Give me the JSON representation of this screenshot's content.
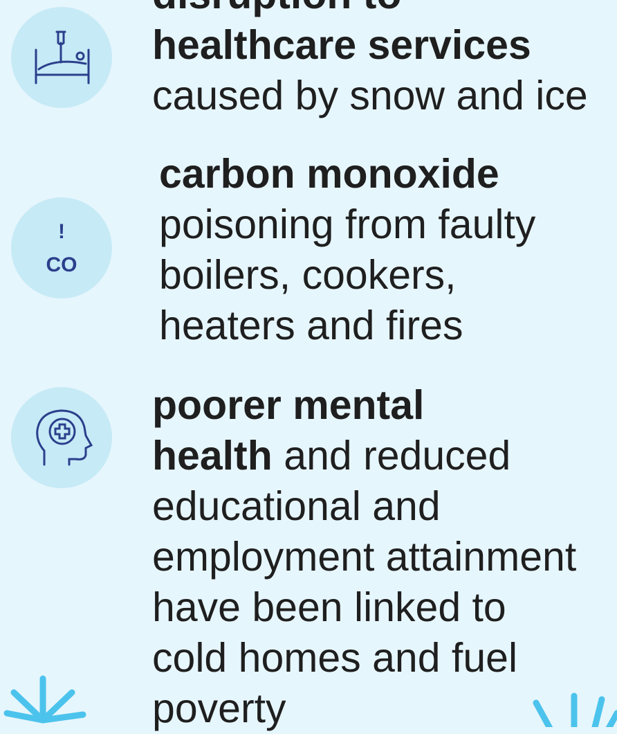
{
  "items": [
    {
      "icon": "bed",
      "lines": [
        {
          "bold": "disruption to"
        },
        {
          "bold": "healthcare services"
        },
        {
          "text": "caused by snow and ice"
        }
      ]
    },
    {
      "icon": "co",
      "icon_text": [
        "!",
        "CO"
      ],
      "lines": [
        {
          "bold": "carbon monoxide"
        },
        {
          "text": "poisoning from faulty"
        },
        {
          "text": "boilers, cookers,"
        },
        {
          "text": "heaters and fires"
        }
      ]
    },
    {
      "icon": "head",
      "lines": [
        {
          "bold": "poorer mental"
        },
        {
          "bold": "health",
          "text": "and reduced"
        },
        {
          "text": "educational and"
        },
        {
          "text": "employment attainment"
        },
        {
          "text": "have been linked to"
        },
        {
          "text": "cold homes and fuel"
        },
        {
          "text": "poverty"
        }
      ]
    }
  ]
}
